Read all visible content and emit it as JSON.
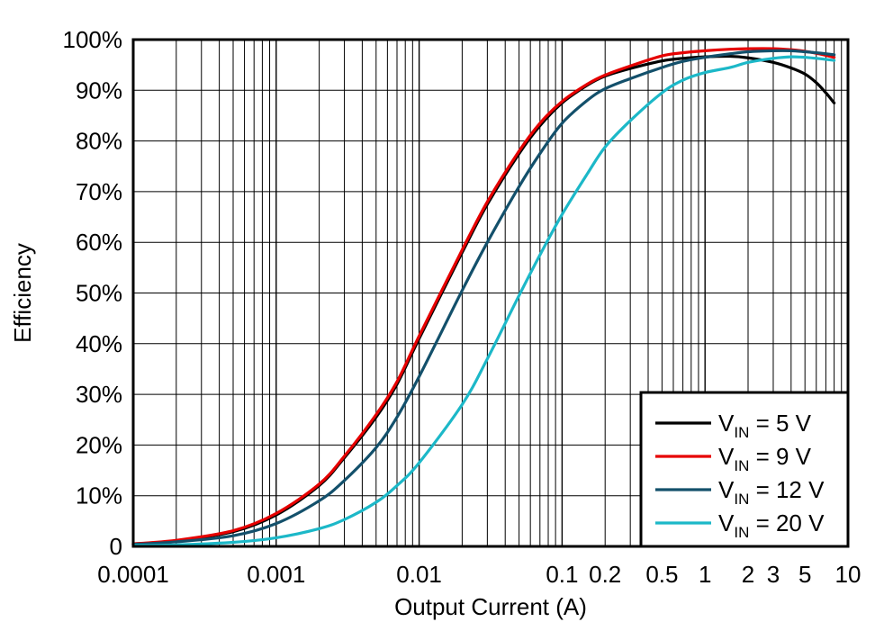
{
  "chart_data": {
    "type": "line",
    "title": "",
    "xlabel": "Output Current (A)",
    "ylabel": "Efficiency",
    "x_scale": "log",
    "xlim": [
      0.0001,
      10
    ],
    "ylim": [
      0,
      100
    ],
    "x_tick_labels": [
      {
        "value": 0.0001,
        "label": "0.0001"
      },
      {
        "value": 0.001,
        "label": "0.001"
      },
      {
        "value": 0.01,
        "label": "0.01"
      },
      {
        "value": 0.1,
        "label": "0.1"
      },
      {
        "value": 0.2,
        "label": "0.2"
      },
      {
        "value": 0.5,
        "label": "0.5"
      },
      {
        "value": 1,
        "label": "1"
      },
      {
        "value": 2,
        "label": "2"
      },
      {
        "value": 3,
        "label": "3"
      },
      {
        "value": 5,
        "label": "5"
      },
      {
        "value": 10,
        "label": "10"
      }
    ],
    "y_tick_labels": [
      {
        "value": 0,
        "label": "0"
      },
      {
        "value": 10,
        "label": "10%"
      },
      {
        "value": 20,
        "label": "20%"
      },
      {
        "value": 30,
        "label": "30%"
      },
      {
        "value": 40,
        "label": "40%"
      },
      {
        "value": 50,
        "label": "50%"
      },
      {
        "value": 60,
        "label": "60%"
      },
      {
        "value": 70,
        "label": "70%"
      },
      {
        "value": 80,
        "label": "80%"
      },
      {
        "value": 90,
        "label": "90%"
      },
      {
        "value": 100,
        "label": "100%"
      }
    ],
    "grid": true,
    "legend_position": "bottom-right",
    "series": [
      {
        "name": "VIN = 5 V",
        "legend_main": "V",
        "legend_sub": "IN",
        "legend_rest": " = 5 V",
        "color": "#000000",
        "points": [
          [
            0.0001,
            0.5
          ],
          [
            0.0002,
            1.1
          ],
          [
            0.0005,
            2.9
          ],
          [
            0.001,
            6.2
          ],
          [
            0.002,
            12.0
          ],
          [
            0.003,
            17.5
          ],
          [
            0.005,
            25.5
          ],
          [
            0.007,
            32.0
          ],
          [
            0.01,
            41.0
          ],
          [
            0.02,
            58.0
          ],
          [
            0.03,
            67.5
          ],
          [
            0.05,
            77.5
          ],
          [
            0.07,
            83.0
          ],
          [
            0.1,
            87.5
          ],
          [
            0.15,
            91.0
          ],
          [
            0.2,
            92.8
          ],
          [
            0.3,
            94.3
          ],
          [
            0.5,
            95.8
          ],
          [
            0.7,
            96.3
          ],
          [
            1,
            96.6
          ],
          [
            1.5,
            96.7
          ],
          [
            2,
            96.4
          ],
          [
            3,
            95.5
          ],
          [
            4,
            94.4
          ],
          [
            5,
            93.2
          ],
          [
            6,
            91.5
          ],
          [
            7,
            89.5
          ],
          [
            8,
            87.5
          ]
        ]
      },
      {
        "name": "VIN = 9 V",
        "legend_main": "V",
        "legend_sub": "IN",
        "legend_rest": " = 9 V",
        "color": "#e60000",
        "points": [
          [
            0.0001,
            0.5
          ],
          [
            0.0002,
            1.2
          ],
          [
            0.0005,
            3.1
          ],
          [
            0.001,
            6.5
          ],
          [
            0.002,
            12.3
          ],
          [
            0.003,
            17.8
          ],
          [
            0.005,
            26.0
          ],
          [
            0.007,
            32.5
          ],
          [
            0.01,
            41.5
          ],
          [
            0.02,
            58.5
          ],
          [
            0.03,
            68.0
          ],
          [
            0.05,
            78.0
          ],
          [
            0.07,
            83.5
          ],
          [
            0.1,
            87.8
          ],
          [
            0.15,
            91.2
          ],
          [
            0.2,
            93.0
          ],
          [
            0.3,
            94.8
          ],
          [
            0.5,
            96.8
          ],
          [
            0.7,
            97.4
          ],
          [
            1,
            97.8
          ],
          [
            1.5,
            98.1
          ],
          [
            2,
            98.2
          ],
          [
            3,
            98.2
          ],
          [
            4,
            98.0
          ],
          [
            5,
            97.7
          ],
          [
            6,
            97.3
          ],
          [
            7,
            96.9
          ],
          [
            8,
            96.5
          ]
        ]
      },
      {
        "name": "VIN = 12 V",
        "legend_main": "V",
        "legend_sub": "IN",
        "legend_rest": " = 12 V",
        "color": "#13506b",
        "points": [
          [
            0.0001,
            0.4
          ],
          [
            0.0002,
            0.9
          ],
          [
            0.0005,
            2.1
          ],
          [
            0.001,
            4.5
          ],
          [
            0.002,
            9.0
          ],
          [
            0.003,
            13.0
          ],
          [
            0.005,
            19.5
          ],
          [
            0.007,
            25.5
          ],
          [
            0.01,
            33.5
          ],
          [
            0.02,
            50.5
          ],
          [
            0.03,
            60.0
          ],
          [
            0.05,
            71.0
          ],
          [
            0.07,
            77.5
          ],
          [
            0.1,
            83.5
          ],
          [
            0.15,
            88.0
          ],
          [
            0.2,
            90.3
          ],
          [
            0.3,
            92.3
          ],
          [
            0.5,
            94.5
          ],
          [
            0.7,
            95.7
          ],
          [
            1,
            96.5
          ],
          [
            1.5,
            97.2
          ],
          [
            2,
            97.6
          ],
          [
            3,
            97.8
          ],
          [
            4,
            97.8
          ],
          [
            5,
            97.6
          ],
          [
            6,
            97.4
          ],
          [
            7,
            97.2
          ],
          [
            8,
            97.0
          ]
        ]
      },
      {
        "name": "VIN = 20 V",
        "legend_main": "V",
        "legend_sub": "IN",
        "legend_rest": " = 20 V",
        "color": "#1cb8c8",
        "points": [
          [
            0.0001,
            0.2
          ],
          [
            0.0002,
            0.3
          ],
          [
            0.0005,
            0.8
          ],
          [
            0.001,
            1.7
          ],
          [
            0.002,
            3.5
          ],
          [
            0.003,
            5.3
          ],
          [
            0.005,
            8.7
          ],
          [
            0.007,
            12.0
          ],
          [
            0.01,
            16.5
          ],
          [
            0.02,
            28.0
          ],
          [
            0.03,
            37.0
          ],
          [
            0.05,
            49.5
          ],
          [
            0.07,
            57.5
          ],
          [
            0.1,
            65.5
          ],
          [
            0.15,
            73.5
          ],
          [
            0.2,
            78.8
          ],
          [
            0.3,
            84.0
          ],
          [
            0.5,
            89.5
          ],
          [
            0.7,
            92.0
          ],
          [
            1,
            93.5
          ],
          [
            1.5,
            94.5
          ],
          [
            2,
            95.5
          ],
          [
            3,
            96.3
          ],
          [
            4,
            96.6
          ],
          [
            5,
            96.5
          ],
          [
            6,
            96.3
          ],
          [
            7,
            96.1
          ],
          [
            8,
            95.9
          ]
        ]
      }
    ]
  }
}
